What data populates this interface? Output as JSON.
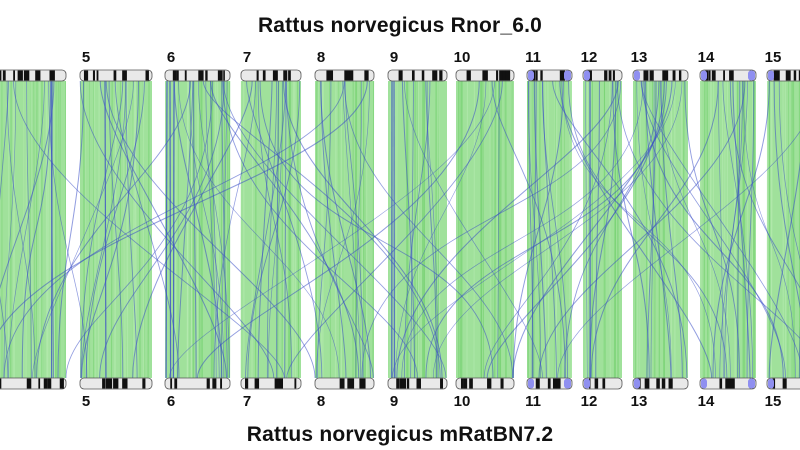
{
  "titles": {
    "reference": "Rattus norvegicus Rnor_6.0",
    "query": "Rattus norvegicus  mRatBN7.2"
  },
  "colors": {
    "synteny": "#8fdc8a",
    "inversion": "#3b4fc7",
    "centromere": "#8f8ff0",
    "band_dark": "#111111",
    "chromosome_fill": "#e9e9e9"
  },
  "chromosomes": [
    {
      "id": "4",
      "label": ""
    },
    {
      "id": "5",
      "label": "5"
    },
    {
      "id": "6",
      "label": "6"
    },
    {
      "id": "7",
      "label": "7"
    },
    {
      "id": "8",
      "label": "8"
    },
    {
      "id": "9",
      "label": "9"
    },
    {
      "id": "10",
      "label": "10"
    },
    {
      "id": "11",
      "label": "11"
    },
    {
      "id": "12",
      "label": "12"
    },
    {
      "id": "13",
      "label": "13"
    },
    {
      "id": "14",
      "label": "14"
    },
    {
      "id": "15",
      "label": "15"
    }
  ]
}
